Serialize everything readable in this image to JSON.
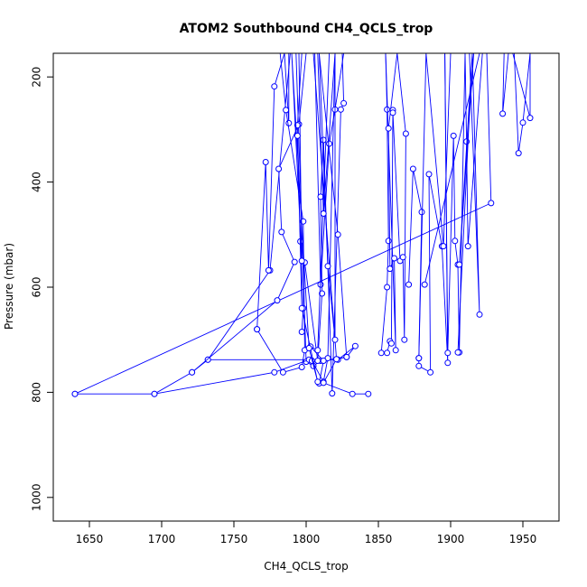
{
  "chart_data": {
    "type": "line",
    "title": "ATOM2 Southbound CH4_QCLS_trop",
    "xlabel": "CH4_QCLS_trop",
    "ylabel": "Pressure (mbar)",
    "xlim": [
      1625,
      1975
    ],
    "ylim": [
      1045,
      155
    ],
    "y_reversed": true,
    "grid": false,
    "x_ticks": [
      1650,
      1700,
      1750,
      1800,
      1850,
      1900,
      1950
    ],
    "y_ticks": [
      200,
      400,
      600,
      800,
      1000
    ],
    "series_color": "#0000ff",
    "series": [
      {
        "x": [
          1640,
          1695,
          1721,
          1732,
          1775,
          1789
        ],
        "y": [
          803,
          803,
          762,
          738,
          568,
          155
        ]
      },
      {
        "x": [
          1732,
          1822,
          1834,
          1828,
          1810,
          1805,
          1800,
          1793
        ],
        "y": [
          738,
          738,
          712,
          733,
          740,
          750,
          742,
          155
        ]
      },
      {
        "x": [
          1640,
          1928,
          1925,
          1930
        ],
        "y": [
          803,
          440,
          155,
          155
        ]
      },
      {
        "x": [
          1695,
          1778,
          1802,
          1804,
          1812,
          1815,
          1820
        ],
        "y": [
          803,
          762,
          738,
          740,
          780,
          735,
          155
        ]
      },
      {
        "x": [
          1721,
          1780,
          1792,
          1783,
          1781,
          1795,
          1800,
          1810
        ],
        "y": [
          762,
          625,
          552,
          495,
          375,
          290,
          155,
          155
        ]
      },
      {
        "x": [
          1766,
          1772,
          1774,
          1778,
          1785,
          1788,
          1788
        ],
        "y": [
          680,
          362,
          568,
          218,
          155,
          288,
          155
        ]
      },
      {
        "x": [
          1766,
          1784,
          1797,
          1799,
          1798,
          1786,
          1782
        ],
        "y": [
          680,
          762,
          752,
          720,
          475,
          263,
          155
        ]
      },
      {
        "x": [
          1797,
          1798,
          1796,
          1794,
          1797,
          1806,
          1810,
          1816,
          1820,
          1826
        ],
        "y": [
          685,
          640,
          513,
          292,
          155,
          155,
          595,
          327,
          262,
          155
        ]
      },
      {
        "x": [
          1799,
          1808,
          1811,
          1810,
          1812,
          1818,
          1824,
          1826,
          1825
        ],
        "y": [
          553,
          740,
          612,
          428,
          320,
          802,
          262,
          250,
          155
        ]
      },
      {
        "x": [
          1809,
          1812,
          1803,
          1808,
          1816
        ],
        "y": [
          783,
          740,
          713,
          720,
          155
        ]
      },
      {
        "x": [
          1794,
          1797,
          1808,
          1802,
          1790,
          1797,
          1795,
          1792
        ],
        "y": [
          312,
          640,
          780,
          716,
          155,
          550,
          155,
          155
        ]
      },
      {
        "x": [
          1843,
          1832,
          1812,
          1821,
          1805,
          1793,
          1790
        ],
        "y": [
          803,
          803,
          782,
          737,
          155,
          155,
          155
        ]
      },
      {
        "x": [
          1821,
          1828,
          1822,
          1809,
          1815,
          1820,
          1820,
          1812,
          1808
        ],
        "y": [
          737,
          733,
          500,
          155,
          560,
          700,
          155,
          460,
          155
        ]
      },
      {
        "x": [
          1852,
          1856,
          1857,
          1856,
          1855,
          1857,
          1858
        ],
        "y": [
          725,
          600,
          512,
          262,
          155,
          155,
          155
        ]
      },
      {
        "x": [
          1856,
          1858,
          1859,
          1860,
          1860,
          1865,
          1867,
          1868,
          1869,
          1863,
          1857,
          1858,
          1861,
          1862,
          1855
        ],
        "y": [
          725,
          703,
          707,
          263,
          268,
          550,
          543,
          700,
          308,
          155,
          298,
          565,
          545,
          720,
          155
        ]
      },
      {
        "x": [
          1871,
          1874,
          1880,
          1878,
          1878,
          1886,
          1885,
          1894,
          1898,
          1896
        ],
        "y": [
          595,
          375,
          457,
          735,
          750,
          762,
          385,
          522,
          744,
          155
        ]
      },
      {
        "x": [
          1878,
          1883,
          1895,
          1900,
          1896,
          1898,
          1902,
          1903,
          1905,
          1906,
          1910,
          1911,
          1912,
          1922
        ],
        "y": [
          735,
          155,
          522,
          155,
          155,
          725,
          312,
          512,
          557,
          724,
          155,
          323,
          522,
          155
        ]
      },
      {
        "x": [
          1905,
          1915,
          1913,
          1920,
          1915,
          1906,
          1916,
          1929,
          1928,
          1934,
          1940,
          1936,
          1937
        ],
        "y": [
          724,
          155,
          155,
          652,
          155,
          557,
          155,
          155,
          155,
          155,
          155,
          270,
          155
        ]
      },
      {
        "x": [
          1882,
          1920,
          1934,
          1944,
          1947,
          1950,
          1955,
          1955,
          1943
        ],
        "y": [
          595,
          155,
          155,
          155,
          345,
          287,
          155,
          278,
          155
        ]
      }
    ]
  }
}
